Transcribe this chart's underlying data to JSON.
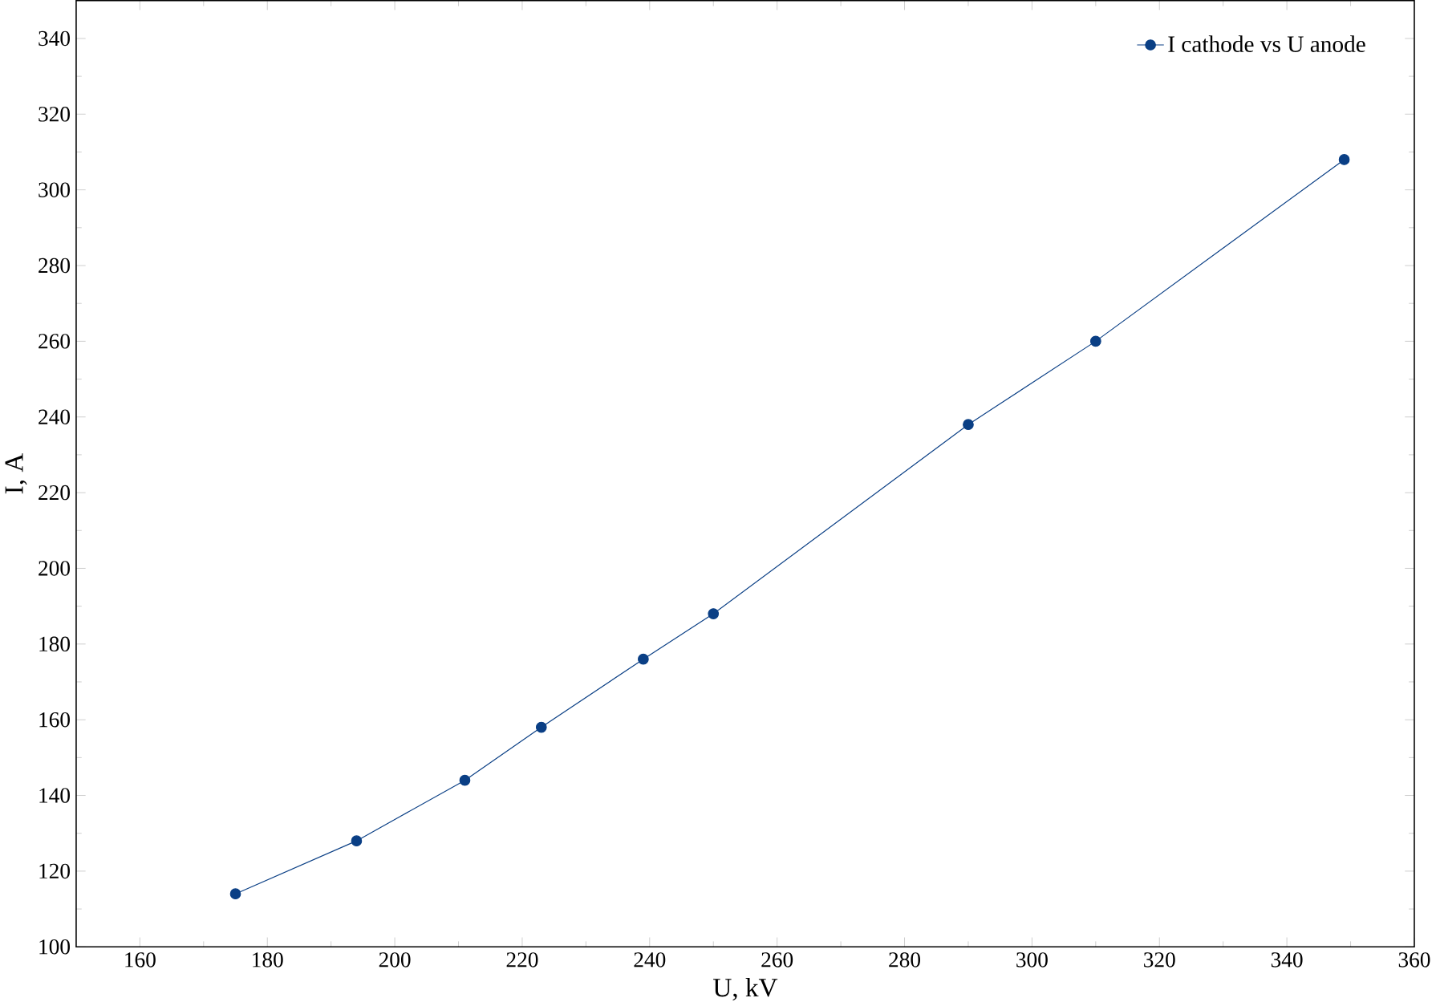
{
  "chart_data": {
    "type": "line",
    "xlabel": "U, kV",
    "ylabel": "I, A",
    "x": [
      175,
      194,
      211,
      223,
      239,
      250,
      290,
      310,
      349
    ],
    "series": [
      {
        "name": "I cathode vs U anode",
        "color": "#0a3f85",
        "values": [
          114,
          128,
          144,
          158,
          176,
          188,
          238,
          260,
          308
        ]
      }
    ],
    "xlim": [
      150,
      360
    ],
    "ylim": [
      100,
      350
    ],
    "xticks": [
      160,
      180,
      200,
      220,
      240,
      260,
      280,
      300,
      320,
      340,
      360
    ],
    "yticks": [
      100,
      120,
      140,
      160,
      180,
      200,
      220,
      240,
      260,
      280,
      300,
      320,
      340
    ],
    "legend": "top right",
    "marker": "circle",
    "line_style": "solid",
    "grid": false
  }
}
